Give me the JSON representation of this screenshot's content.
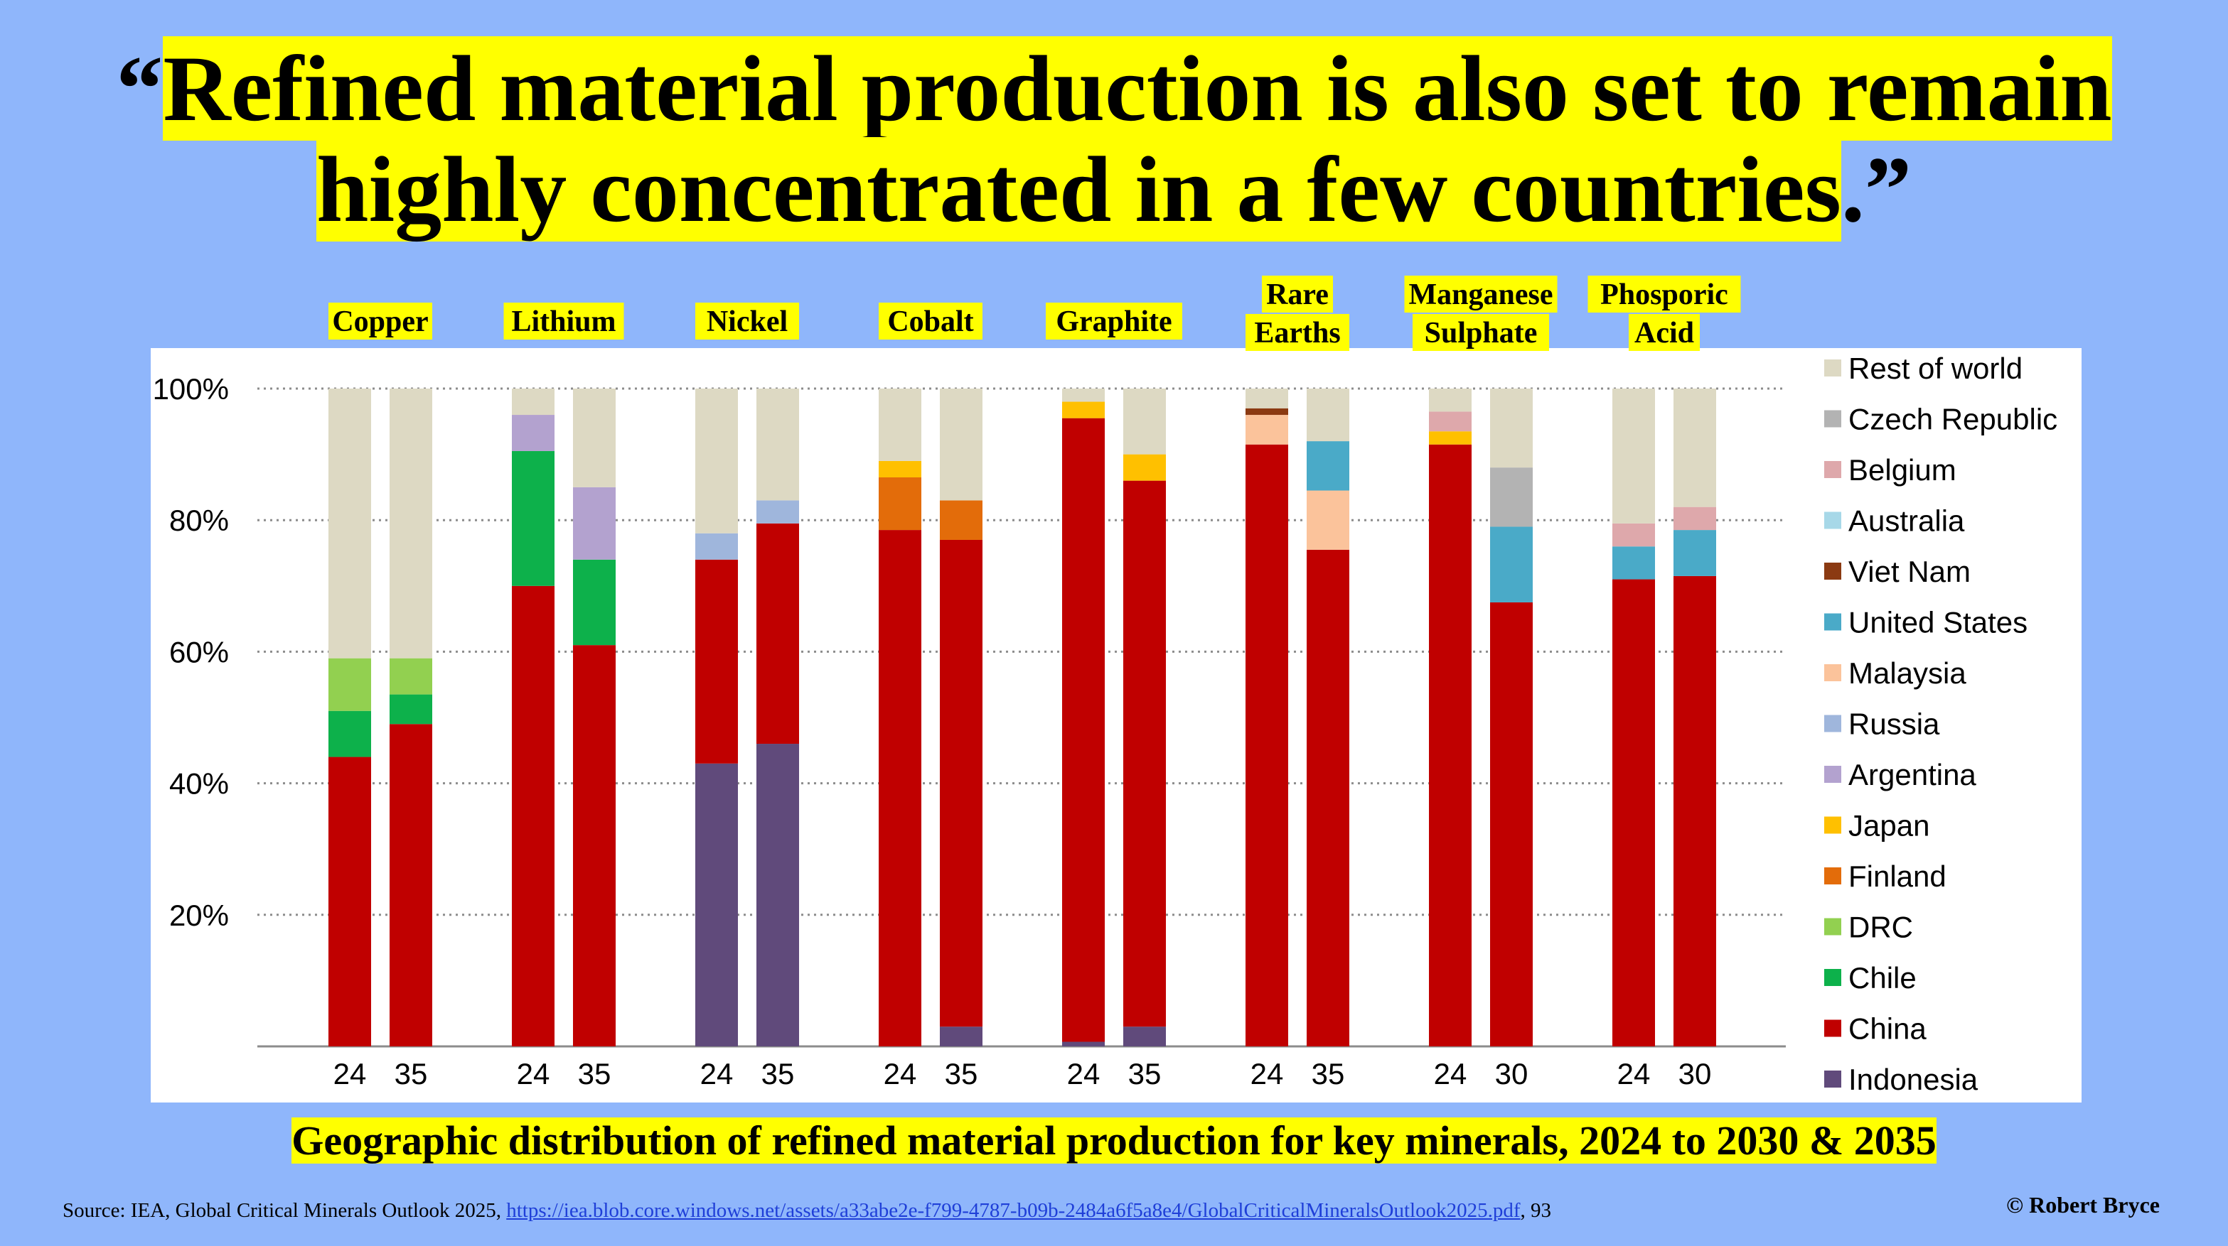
{
  "title": {
    "open_quote": "“",
    "text_line1": "Refined material production is also set to remain",
    "text_line2": "highly concentrated in a few countries",
    "close": ".”"
  },
  "caption": "Geographic distribution of refined material production for key minerals, 2024 to 2030 & 2035",
  "source": {
    "prefix": "Source: IEA, Global Critical Minerals Outlook 2025, ",
    "link_text": "https://iea.blob.core.windows.net/assets/a33abe2e-f799-4787-b09b-2484a6f5a8e4/GlobalCriticalMineralsOutlook2025.pdf",
    "suffix": ", 93"
  },
  "copyright": "© Robert Bryce",
  "colors": {
    "Rest of world": "#ddd9c3",
    "Czech Republic": "#b3b3b3",
    "Belgium": "#dea8ab",
    "Australia": "#a7d8e8",
    "Viet Nam": "#8b3a12",
    "United States": "#4aaac8",
    "Malaysia": "#fbc39b",
    "Russia": "#9fb6dc",
    "Argentina": "#b3a2cf",
    "Japan": "#ffc000",
    "Finland": "#e36c0a",
    "DRC": "#92d050",
    "Chile": "#0db14b",
    "China": "#c00000",
    "Indonesia": "#604a7b"
  },
  "chart_data": {
    "type": "stacked-bar",
    "yticks": [
      "20%",
      "40%",
      "60%",
      "80%",
      "100%"
    ],
    "ylim": [
      0,
      100
    ],
    "legend": [
      "Rest of world",
      "Czech Republic",
      "Belgium",
      "Australia",
      "Viet Nam",
      "United States",
      "Malaysia",
      "Russia",
      "Argentina",
      "Japan",
      "Finland",
      "DRC",
      "Chile",
      "China",
      "Indonesia"
    ],
    "groups": [
      {
        "name": "Copper",
        "bars": [
          {
            "label": "24",
            "segments": [
              {
                "c": "China",
                "v": 44
              },
              {
                "c": "Chile",
                "v": 7
              },
              {
                "c": "DRC",
                "v": 8
              },
              {
                "c": "Rest of world",
                "v": 41
              }
            ]
          },
          {
            "label": "35",
            "segments": [
              {
                "c": "China",
                "v": 49
              },
              {
                "c": "Chile",
                "v": 4.5
              },
              {
                "c": "DRC",
                "v": 5.5
              },
              {
                "c": "Rest of world",
                "v": 41
              }
            ]
          }
        ]
      },
      {
        "name": "Lithium",
        "bars": [
          {
            "label": "24",
            "segments": [
              {
                "c": "China",
                "v": 70
              },
              {
                "c": "Chile",
                "v": 20.5
              },
              {
                "c": "Argentina",
                "v": 5.5
              },
              {
                "c": "Rest of world",
                "v": 4
              }
            ]
          },
          {
            "label": "35",
            "segments": [
              {
                "c": "China",
                "v": 61
              },
              {
                "c": "Chile",
                "v": 13
              },
              {
                "c": "Argentina",
                "v": 11
              },
              {
                "c": "Rest of world",
                "v": 15
              }
            ]
          }
        ]
      },
      {
        "name": "Nickel",
        "bars": [
          {
            "label": "24",
            "segments": [
              {
                "c": "Indonesia",
                "v": 43
              },
              {
                "c": "China",
                "v": 31
              },
              {
                "c": "Russia",
                "v": 4
              },
              {
                "c": "Rest of world",
                "v": 22
              }
            ]
          },
          {
            "label": "35",
            "segments": [
              {
                "c": "Indonesia",
                "v": 46
              },
              {
                "c": "China",
                "v": 33.5
              },
              {
                "c": "Russia",
                "v": 3.5
              },
              {
                "c": "Rest of world",
                "v": 17
              }
            ]
          }
        ]
      },
      {
        "name": "Cobalt",
        "bars": [
          {
            "label": "24",
            "segments": [
              {
                "c": "China",
                "v": 78.5
              },
              {
                "c": "Finland",
                "v": 8
              },
              {
                "c": "Japan",
                "v": 2.5
              },
              {
                "c": "Rest of world",
                "v": 11
              }
            ]
          },
          {
            "label": "35",
            "segments": [
              {
                "c": "Indonesia",
                "v": 3
              },
              {
                "c": "China",
                "v": 74
              },
              {
                "c": "Finland",
                "v": 6
              },
              {
                "c": "Rest of world",
                "v": 17
              }
            ]
          }
        ]
      },
      {
        "name": "Graphite",
        "bars": [
          {
            "label": "24",
            "segments": [
              {
                "c": "Indonesia",
                "v": 0.7
              },
              {
                "c": "China",
                "v": 94.8
              },
              {
                "c": "Japan",
                "v": 2.5
              },
              {
                "c": "Rest of world",
                "v": 2
              }
            ]
          },
          {
            "label": "35",
            "segments": [
              {
                "c": "Indonesia",
                "v": 3
              },
              {
                "c": "China",
                "v": 83
              },
              {
                "c": "Japan",
                "v": 4
              },
              {
                "c": "Rest of world",
                "v": 10
              }
            ]
          }
        ]
      },
      {
        "name": "Rare Earths",
        "bars": [
          {
            "label": "24",
            "segments": [
              {
                "c": "China",
                "v": 91.5
              },
              {
                "c": "Malaysia",
                "v": 4.5
              },
              {
                "c": "Viet Nam",
                "v": 1
              },
              {
                "c": "Rest of world",
                "v": 3
              }
            ]
          },
          {
            "label": "35",
            "segments": [
              {
                "c": "China",
                "v": 75.5
              },
              {
                "c": "Malaysia",
                "v": 9
              },
              {
                "c": "United States",
                "v": 7.5
              },
              {
                "c": "Rest of world",
                "v": 8
              }
            ]
          }
        ]
      },
      {
        "name": "Manganese Sulphate",
        "bars": [
          {
            "label": "24",
            "segments": [
              {
                "c": "China",
                "v": 91.5
              },
              {
                "c": "Japan",
                "v": 2
              },
              {
                "c": "Belgium",
                "v": 3
              },
              {
                "c": "Rest of world",
                "v": 3.5
              }
            ]
          },
          {
            "label": "30",
            "segments": [
              {
                "c": "China",
                "v": 67.5
              },
              {
                "c": "United States",
                "v": 11.5
              },
              {
                "c": "Czech Republic",
                "v": 9
              },
              {
                "c": "Rest of world",
                "v": 12
              }
            ]
          }
        ]
      },
      {
        "name": "Phosporic Acid",
        "bars": [
          {
            "label": "24",
            "segments": [
              {
                "c": "China",
                "v": 71
              },
              {
                "c": "United States",
                "v": 5
              },
              {
                "c": "Belgium",
                "v": 3.5
              },
              {
                "c": "Rest of world",
                "v": 20.5
              }
            ]
          },
          {
            "label": "30",
            "segments": [
              {
                "c": "China",
                "v": 71.5
              },
              {
                "c": "United States",
                "v": 7
              },
              {
                "c": "Belgium",
                "v": 3.5
              },
              {
                "c": "Rest of world",
                "v": 18
              }
            ]
          }
        ]
      }
    ]
  }
}
